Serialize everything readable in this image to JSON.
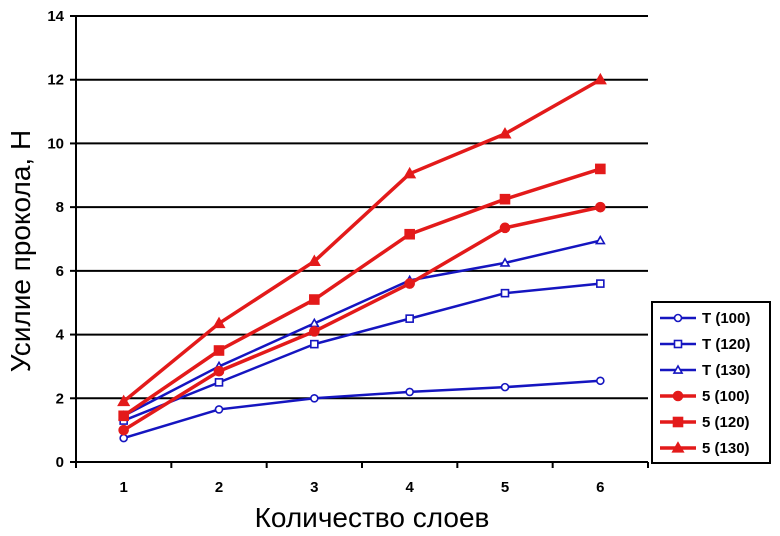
{
  "chart_data": {
    "type": "line",
    "title": "",
    "xlabel": "Количество слоев",
    "ylabel": "Усилие прокола, Н",
    "x": [
      1,
      2,
      3,
      4,
      5,
      6
    ],
    "xlim": [
      0.5,
      6.5
    ],
    "ylim": [
      0,
      14
    ],
    "yticks": [
      0,
      2,
      4,
      6,
      8,
      10,
      12,
      14
    ],
    "grid": "horizontal major gridlines",
    "legend_position": "right",
    "series": [
      {
        "name": "T (100)",
        "color": "#1515c0",
        "marker": "circle",
        "filled": false,
        "values": [
          0.75,
          1.65,
          2.0,
          2.2,
          2.35,
          2.55
        ]
      },
      {
        "name": "T (120)",
        "color": "#1515c0",
        "marker": "square",
        "filled": false,
        "values": [
          1.3,
          2.5,
          3.7,
          4.5,
          5.3,
          5.6
        ]
      },
      {
        "name": "T (130)",
        "color": "#1515c0",
        "marker": "triangle",
        "filled": false,
        "values": [
          1.45,
          3.0,
          4.35,
          5.7,
          6.25,
          6.95
        ]
      },
      {
        "name": "5 (100)",
        "color": "#e31a1a",
        "marker": "circle",
        "filled": true,
        "values": [
          1.0,
          2.85,
          4.1,
          5.6,
          7.35,
          8.0
        ]
      },
      {
        "name": "5 (120)",
        "color": "#e31a1a",
        "marker": "square",
        "filled": true,
        "values": [
          1.45,
          3.5,
          5.1,
          7.15,
          8.25,
          9.2
        ]
      },
      {
        "name": "5 (130)",
        "color": "#e31a1a",
        "marker": "triangle",
        "filled": true,
        "values": [
          1.9,
          4.35,
          6.3,
          9.05,
          10.3,
          12.0
        ]
      }
    ]
  }
}
